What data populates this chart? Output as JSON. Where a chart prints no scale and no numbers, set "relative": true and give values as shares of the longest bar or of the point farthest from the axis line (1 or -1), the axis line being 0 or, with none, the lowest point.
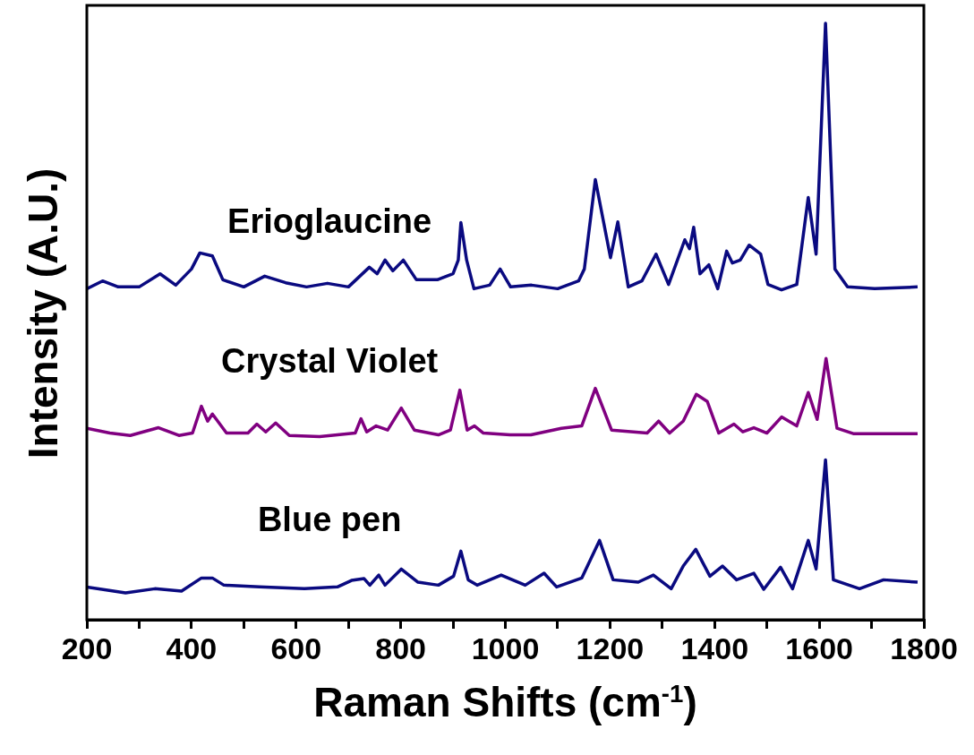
{
  "chart_data": {
    "type": "line",
    "relative": true,
    "xlabel": "Raman Shifts (cm$^{-1}$)",
    "ylabel": "Intensity (A.U.)",
    "xlim": [
      200,
      1800
    ],
    "xticks": [
      200,
      {
        "value": 300,
        "label": null
      },
      400,
      {
        "value": 500,
        "label": null
      },
      600,
      {
        "value": 700,
        "label": null
      },
      800,
      {
        "value": 900,
        "label": null
      },
      1000,
      {
        "value": 1100,
        "label": null
      },
      1200,
      {
        "value": 1300,
        "label": null
      },
      1400,
      {
        "value": 1500,
        "label": null
      },
      1600,
      {
        "value": 1700,
        "label": null
      },
      1800
    ],
    "tick_labels": "x",
    "grid": false,
    "legend": false,
    "marker": "none",
    "line_style": "solid",
    "series": [
      {
        "name": "Erioglaucine",
        "color": "#0a0a80",
        "x": [
          200,
          230,
          260,
          300,
          340,
          370,
          400,
          416,
          440,
          460,
          500,
          540,
          580,
          620,
          660,
          700,
          740,
          755,
          770,
          785,
          805,
          830,
          870,
          900,
          910,
          915,
          926,
          940,
          970,
          990,
          1010,
          1050,
          1100,
          1140,
          1151,
          1172,
          1201,
          1215,
          1235,
          1261,
          1288,
          1312,
          1343,
          1352,
          1360,
          1372,
          1389,
          1406,
          1423,
          1434,
          1449,
          1466,
          1488,
          1502,
          1528,
          1557,
          1579,
          1594,
          1612,
          1630,
          1654,
          1706,
          1788
        ],
        "values": [
          0.555,
          0.568,
          0.558,
          0.558,
          0.58,
          0.561,
          0.588,
          0.615,
          0.61,
          0.57,
          0.558,
          0.576,
          0.565,
          0.558,
          0.564,
          0.558,
          0.591,
          0.58,
          0.603,
          0.585,
          0.603,
          0.57,
          0.57,
          0.58,
          0.603,
          0.666,
          0.603,
          0.555,
          0.561,
          0.588,
          0.558,
          0.561,
          0.555,
          0.568,
          0.588,
          0.738,
          0.607,
          0.667,
          0.558,
          0.568,
          0.613,
          0.562,
          0.637,
          0.622,
          0.658,
          0.58,
          0.595,
          0.555,
          0.618,
          0.598,
          0.603,
          0.628,
          0.613,
          0.562,
          0.553,
          0.562,
          0.708,
          0.613,
          1.0,
          0.588,
          0.558,
          0.555,
          0.558
        ]
      },
      {
        "name": "Crystal Violet",
        "color": "#800080",
        "x": [
          200,
          244,
          283,
          337,
          376,
          402,
          419,
          431,
          440,
          467,
          508,
          525,
          542,
          561,
          587,
          645,
          713,
          724,
          735,
          753,
          775,
          801,
          826,
          872,
          895,
          913,
          927,
          941,
          958,
          1009,
          1049,
          1107,
          1146,
          1172,
          1203,
          1271,
          1293,
          1314,
          1340,
          1365,
          1386,
          1408,
          1437,
          1454,
          1475,
          1500,
          1528,
          1557,
          1579,
          1596,
          1613,
          1634,
          1665,
          1788
        ],
        "values": [
          0.321,
          0.313,
          0.309,
          0.322,
          0.309,
          0.313,
          0.358,
          0.333,
          0.345,
          0.313,
          0.313,
          0.328,
          0.315,
          0.33,
          0.309,
          0.307,
          0.313,
          0.337,
          0.315,
          0.325,
          0.318,
          0.355,
          0.318,
          0.31,
          0.318,
          0.385,
          0.318,
          0.325,
          0.313,
          0.31,
          0.31,
          0.321,
          0.325,
          0.388,
          0.318,
          0.313,
          0.333,
          0.313,
          0.333,
          0.378,
          0.366,
          0.313,
          0.328,
          0.315,
          0.322,
          0.313,
          0.34,
          0.325,
          0.381,
          0.336,
          0.438,
          0.321,
          0.312,
          0.312
        ]
      },
      {
        "name": "Blue pen",
        "color": "#0a0a80",
        "x": [
          200,
          274,
          330,
          381,
          419,
          440,
          462,
          530,
          616,
          679,
          706,
          730,
          741,
          758,
          770,
          801,
          833,
          872,
          901,
          915,
          929,
          946,
          992,
          1038,
          1074,
          1098,
          1146,
          1180,
          1206,
          1254,
          1283,
          1317,
          1340,
          1364,
          1391,
          1415,
          1442,
          1475,
          1494,
          1526,
          1549,
          1579,
          1594,
          1612,
          1627,
          1677,
          1723,
          1788
        ],
        "values": [
          0.055,
          0.045,
          0.052,
          0.048,
          0.07,
          0.07,
          0.058,
          0.055,
          0.052,
          0.055,
          0.066,
          0.069,
          0.058,
          0.075,
          0.058,
          0.085,
          0.063,
          0.058,
          0.073,
          0.115,
          0.067,
          0.058,
          0.075,
          0.058,
          0.078,
          0.055,
          0.07,
          0.133,
          0.067,
          0.063,
          0.075,
          0.052,
          0.09,
          0.118,
          0.073,
          0.09,
          0.067,
          0.078,
          0.051,
          0.088,
          0.052,
          0.133,
          0.085,
          0.268,
          0.067,
          0.052,
          0.067,
          0.063
        ]
      }
    ]
  }
}
